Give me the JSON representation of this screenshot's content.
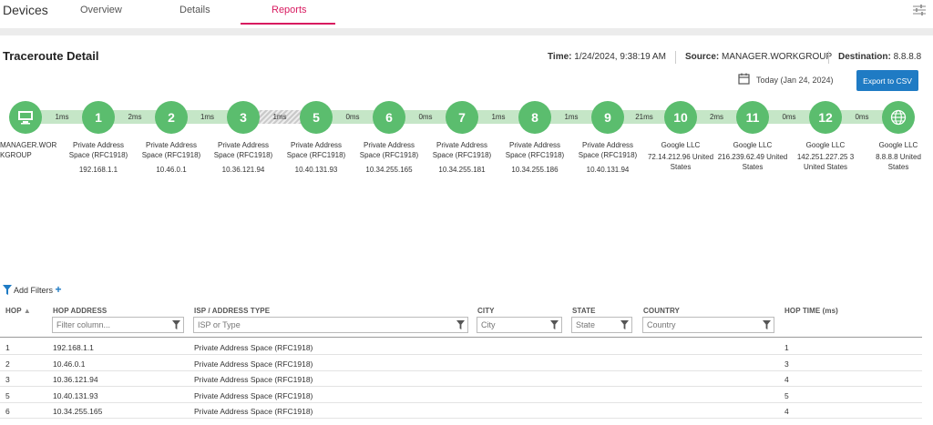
{
  "app": {
    "title": "Devices"
  },
  "tabs": [
    {
      "label": "Overview"
    },
    {
      "label": "Details"
    },
    {
      "label": "Reports"
    }
  ],
  "section_title": "Traceroute Detail",
  "meta": {
    "time_label": "Time:",
    "time_value": "1/24/2024, 9:38:19 AM",
    "source_label": "Source:",
    "source_value": "MANAGER.WORKGROUP",
    "destination_label": "Destination:",
    "destination_value": "8.8.8.8"
  },
  "today_label": "Today (Jan 24, 2024)",
  "export_label": "Export to CSV",
  "route": {
    "nodes": [
      {
        "label": "",
        "name": "MANAGER.WOR KGROUP",
        "ip": ""
      },
      {
        "label": "1",
        "name": "Private Address Space (RFC1918)",
        "ip": "192.168.1.1"
      },
      {
        "label": "2",
        "name": "Private Address Space (RFC1918)",
        "ip": "10.46.0.1"
      },
      {
        "label": "3",
        "name": "Private Address Space (RFC1918)",
        "ip": "10.36.121.94"
      },
      {
        "label": "5",
        "name": "Private Address Space (RFC1918)",
        "ip": "10.40.131.93"
      },
      {
        "label": "6",
        "name": "Private Address Space (RFC1918)",
        "ip": "10.34.255.165"
      },
      {
        "label": "7",
        "name": "Private Address Space (RFC1918)",
        "ip": "10.34.255.181"
      },
      {
        "label": "8",
        "name": "Private Address Space (RFC1918)",
        "ip": "10.34.255.186"
      },
      {
        "label": "9",
        "name": "Private Address Space (RFC1918)",
        "ip": "10.40.131.94"
      },
      {
        "label": "10",
        "name": "Google LLC",
        "ip": "72.14.212.96 United States"
      },
      {
        "label": "11",
        "name": "Google LLC",
        "ip": "216.239.62.49 United States"
      },
      {
        "label": "12",
        "name": "Google LLC",
        "ip": "142.251.227.25 3 United States"
      },
      {
        "label": "",
        "name": "Google LLC",
        "ip": "8.8.8.8 United States"
      }
    ],
    "links": [
      "1ms",
      "2ms",
      "1ms",
      "1ms",
      "0ms",
      "0ms",
      "1ms",
      "1ms",
      "21ms",
      "2ms",
      "0ms",
      "0ms"
    ]
  },
  "filters": {
    "add_label": "Add Filters"
  },
  "table": {
    "columns": {
      "hop": "HOP",
      "address": "HOP ADDRESS",
      "isp": "ISP / ADDRESS TYPE",
      "city": "CITY",
      "state": "STATE",
      "country": "COUNTRY",
      "time": "HOP TIME (ms)"
    },
    "placeholders": {
      "address": "Filter column...",
      "isp": "ISP or Type",
      "city": "City",
      "state": "State",
      "country": "Country"
    },
    "rows": [
      {
        "hop": "1",
        "address": "192.168.1.1",
        "isp": "Private Address Space (RFC1918)",
        "time": "1"
      },
      {
        "hop": "2",
        "address": "10.46.0.1",
        "isp": "Private Address Space (RFC1918)",
        "time": "3"
      },
      {
        "hop": "3",
        "address": "10.36.121.94",
        "isp": "Private Address Space (RFC1918)",
        "time": "4"
      },
      {
        "hop": "5",
        "address": "10.40.131.93",
        "isp": "Private Address Space (RFC1918)",
        "time": "5"
      },
      {
        "hop": "6",
        "address": "10.34.255.165",
        "isp": "Private Address Space (RFC1918)",
        "time": "4"
      }
    ]
  }
}
